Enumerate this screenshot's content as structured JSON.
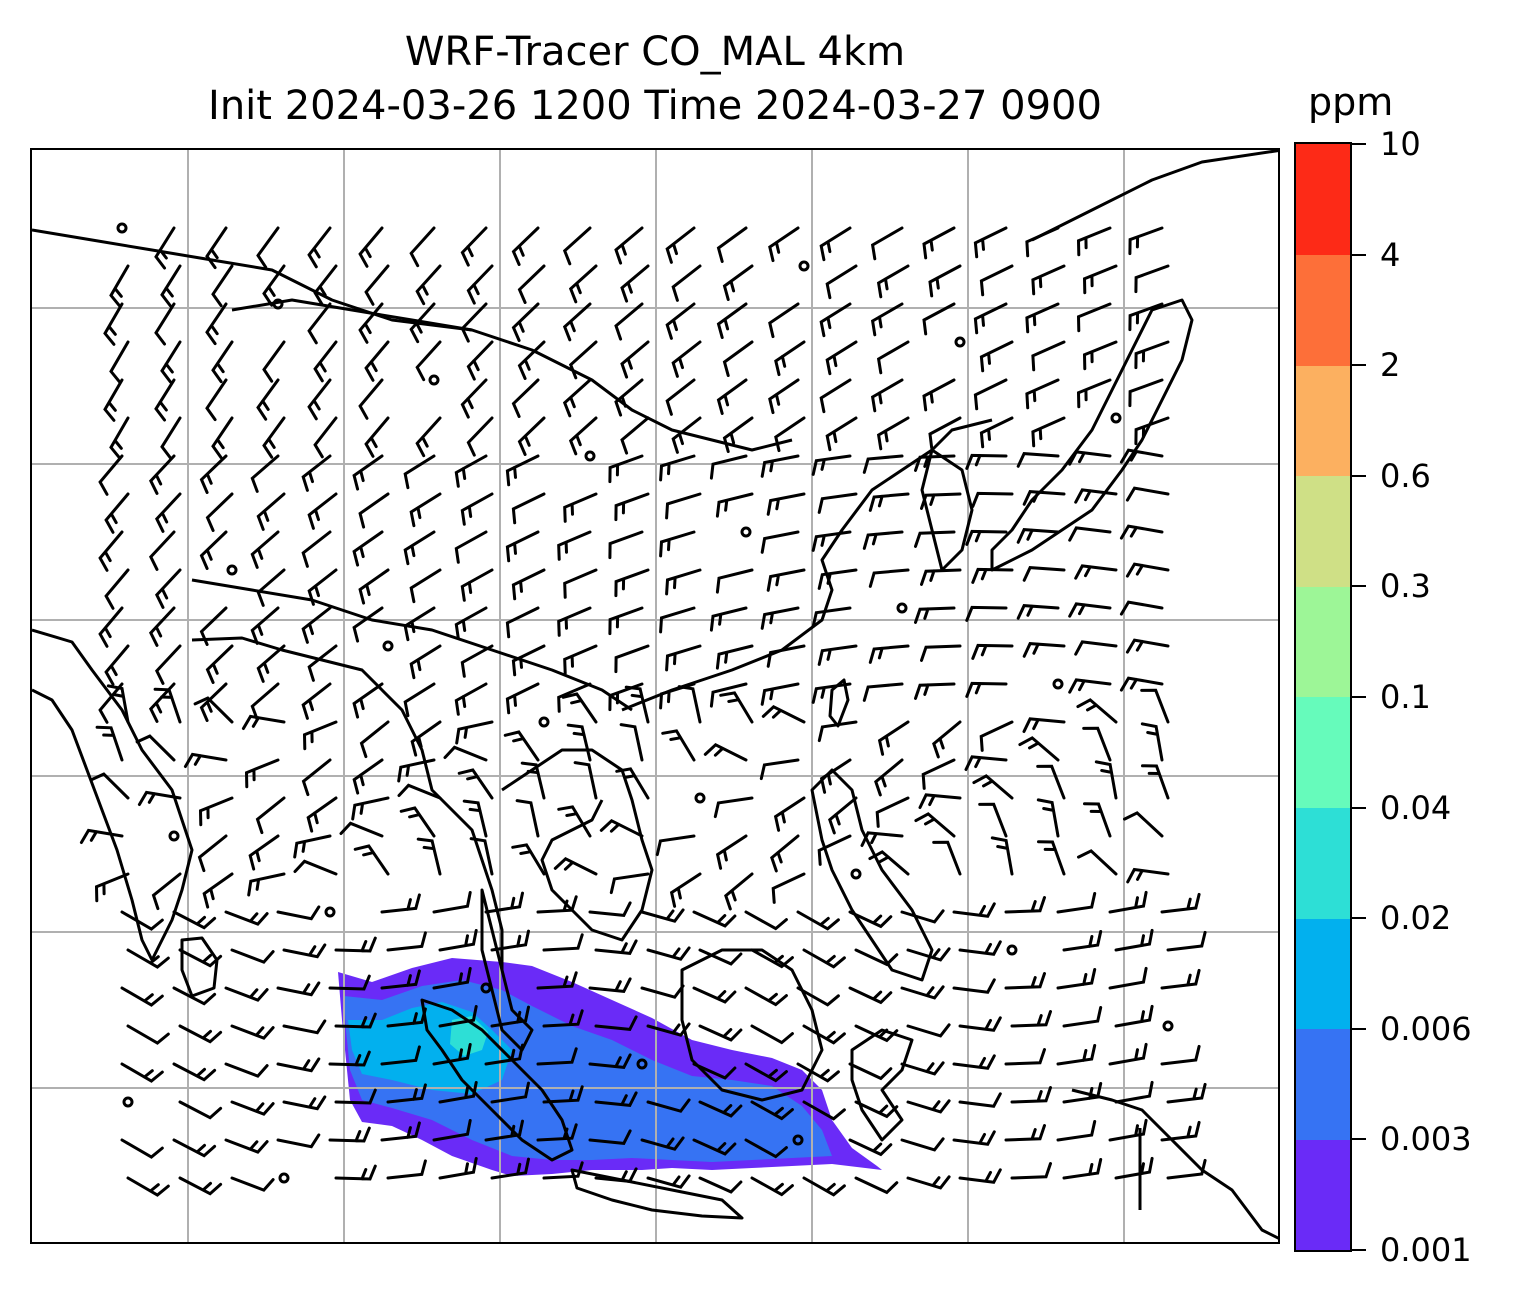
{
  "title": {
    "line1": "WRF-Tracer CO_MAL 4km",
    "line2": "Init 2024-03-26 1200 Time 2024-03-27 0900"
  },
  "colorbar": {
    "label": "ppm",
    "ticks": [
      "0.001",
      "0.003",
      "0.006",
      "0.02",
      "0.04",
      "0.1",
      "0.3",
      "0.6",
      "2",
      "4",
      "10"
    ],
    "colors": [
      "#6a2bf7",
      "#3673f3",
      "#02b0ee",
      "#2ddfd6",
      "#66fbbb",
      "#9df697",
      "#cfe086",
      "#fcb060",
      "#fd6f39",
      "#fd2a17"
    ]
  },
  "map": {
    "land_outline_color": "#000000",
    "gridline_color": "#b0b0b0",
    "barb_color": "#000000",
    "grid_lines": {
      "vertical": 7,
      "horizontal": 6
    }
  }
}
